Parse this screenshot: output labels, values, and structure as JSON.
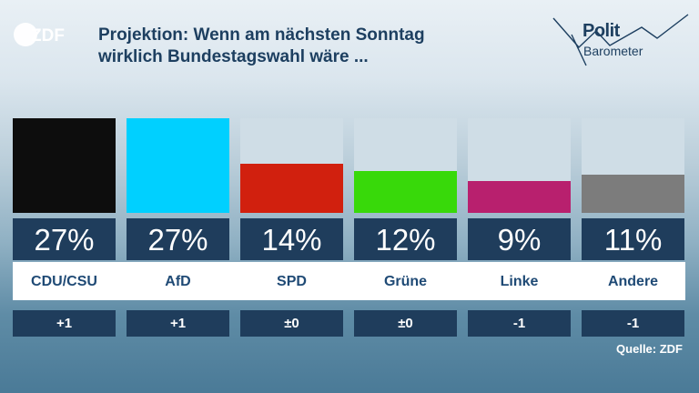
{
  "header": {
    "logo_text": "ZDF",
    "title_line1": "Projektion: Wenn am nächsten Sonntag",
    "title_line2": "wirklich Bundestagswahl wäre ...",
    "brand_line1": "Polit",
    "brand_line2": "Barometer"
  },
  "chart_data": {
    "type": "bar",
    "title": "Projektion: Wenn am nächsten Sonntag wirklich Bundestagswahl wäre ...",
    "categories": [
      "CDU/\nCSU",
      "AfD",
      "SPD",
      "Grüne",
      "Linke",
      "Andere"
    ],
    "values": [
      27,
      27,
      14,
      12,
      9,
      11
    ],
    "value_labels": [
      "27%",
      "27%",
      "14%",
      "12%",
      "9%",
      "11%"
    ],
    "changes": [
      "+1",
      "+1",
      "±0",
      "±0",
      "-1",
      "-1"
    ],
    "colors": [
      "#0d0d0d",
      "#00d0ff",
      "#d1200e",
      "#38d90a",
      "#b8206e",
      "#7c7c7c"
    ],
    "ylim": [
      0,
      27
    ],
    "grid": false
  },
  "footer": {
    "source": "Quelle: ZDF"
  }
}
